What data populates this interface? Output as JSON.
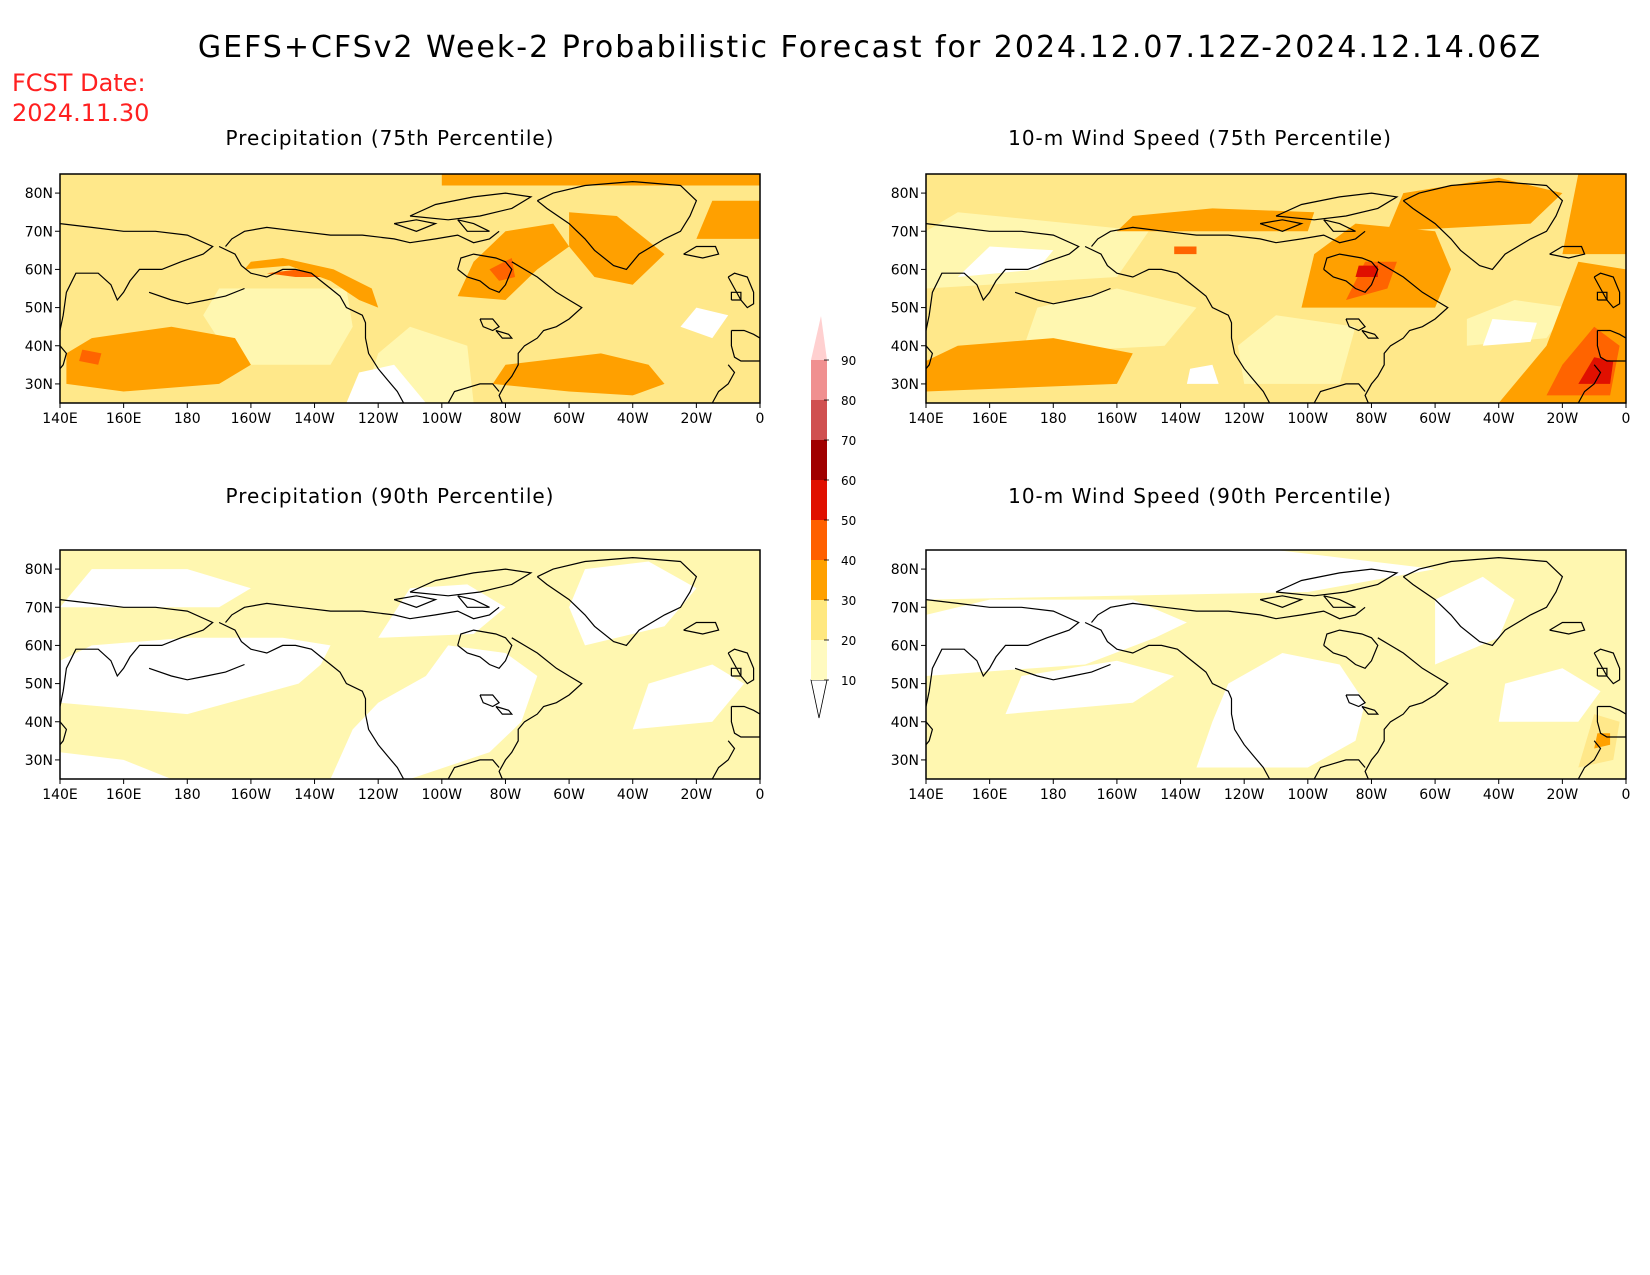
{
  "title": "GEFS+CFSv2 Week-2 Probabilistic Forecast for 2024.12.07.12Z-2024.12.14.06Z",
  "fcst_label": "FCST Date:",
  "fcst_date": "2024.11.30",
  "panels": [
    {
      "title": "Precipitation (75th Percentile)"
    },
    {
      "title": "10-m Wind Speed (75th Percentile)"
    },
    {
      "title": "Precipitation (90th Percentile)"
    },
    {
      "title": "10-m Wind Speed (90th Percentile)"
    }
  ],
  "lat_ticks": [
    "80N",
    "70N",
    "60N",
    "50N",
    "40N",
    "30N"
  ],
  "lon_ticks": [
    "140E",
    "160E",
    "180",
    "160W",
    "140W",
    "120W",
    "100W",
    "80W",
    "60W",
    "40W",
    "20W",
    "0"
  ],
  "colorbar": {
    "levels": [
      "10",
      "20",
      "30",
      "40",
      "50",
      "60",
      "70",
      "80",
      "90"
    ],
    "colors": [
      "#fffac0",
      "#ffe880",
      "#ffa000",
      "#ff6000",
      "#e01000",
      "#a00000",
      "#d05050",
      "#f09090",
      "#ffd0d0"
    ]
  },
  "colors": {
    "light": "#fff7b0",
    "yellow": "#ffe88a",
    "orange": "#ffa000",
    "dark_orange": "#ff6400",
    "red": "#e01000",
    "title_red": "#ff2020"
  }
}
